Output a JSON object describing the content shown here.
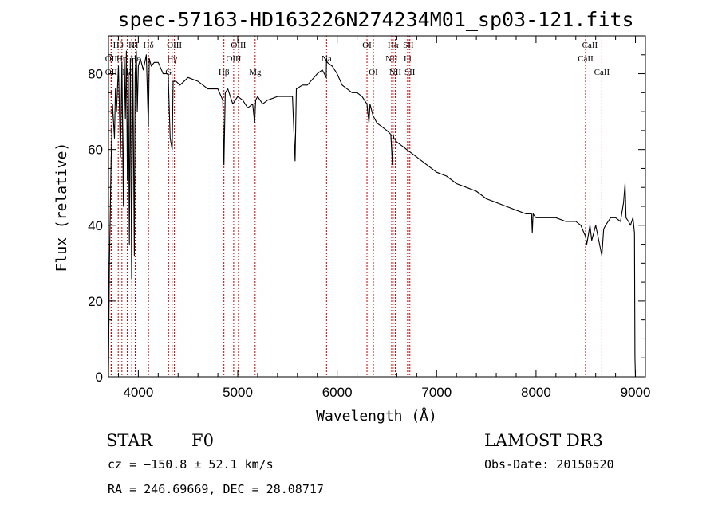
{
  "chart_data": {
    "type": "line",
    "title": "spec-57163-HD163226N274234M01_sp03-121.fits",
    "xlabel": "Wavelength (Å)",
    "ylabel": "Flux (relative)",
    "xlim": [
      3700,
      9100
    ],
    "ylim": [
      0,
      90
    ],
    "xticks": [
      4000,
      5000,
      6000,
      7000,
      8000,
      9000
    ],
    "yticks": [
      0,
      20,
      40,
      60,
      80
    ],
    "series": [
      {
        "name": "spectrum",
        "x": [
          3700,
          3710,
          3725,
          3740,
          3760,
          3770,
          3780,
          3800,
          3820,
          3835,
          3850,
          3860,
          3870,
          3880,
          3890,
          3900,
          3910,
          3920,
          3933,
          3945,
          3960,
          3968,
          3980,
          3990,
          4000,
          4020,
          4050,
          4080,
          4101,
          4110,
          4130,
          4160,
          4200,
          4250,
          4300,
          4320,
          4340,
          4350,
          4380,
          4420,
          4500,
          4600,
          4700,
          4800,
          4850,
          4861,
          4875,
          4900,
          4950,
          5000,
          5050,
          5100,
          5150,
          5170,
          5180,
          5200,
          5250,
          5300,
          5400,
          5500,
          5550,
          5577,
          5590,
          5650,
          5700,
          5800,
          5850,
          5890,
          5893,
          5900,
          5950,
          6000,
          6050,
          6100,
          6150,
          6200,
          6250,
          6300,
          6320,
          6330,
          6360,
          6400,
          6450,
          6500,
          6540,
          6556,
          6563,
          6570,
          6600,
          6650,
          6700,
          6750,
          6800,
          6900,
          7000,
          7100,
          7200,
          7300,
          7400,
          7500,
          7600,
          7700,
          7800,
          7900,
          7955,
          7962,
          7970,
          8000,
          8100,
          8200,
          8300,
          8400,
          8450,
          8498,
          8510,
          8542,
          8560,
          8600,
          8662,
          8680,
          8700,
          8750,
          8800,
          8850,
          8880,
          8895,
          8905,
          8930,
          8950,
          8975,
          8990,
          8995,
          9000
        ],
        "y": [
          0,
          30,
          55,
          72,
          63,
          76,
          70,
          82,
          58,
          83,
          45,
          84,
          68,
          86,
          52,
          80,
          35,
          84,
          26,
          84,
          32,
          80,
          86,
          70,
          82,
          84,
          81,
          85,
          66,
          84,
          82,
          83,
          83,
          80,
          80,
          63,
          60,
          78,
          78,
          77,
          79,
          78,
          76,
          76,
          73,
          56,
          75,
          76,
          72,
          74,
          73,
          71,
          72,
          67,
          73,
          74,
          72,
          73,
          74,
          74,
          74,
          57,
          76,
          77,
          77,
          80,
          81,
          79,
          84,
          83,
          82,
          80,
          77,
          76,
          75,
          75,
          74,
          72,
          67,
          72,
          69,
          67,
          66,
          65,
          64,
          56,
          64,
          63,
          62,
          61,
          60,
          59,
          58,
          56,
          54,
          53,
          51,
          50,
          49,
          47,
          46,
          45,
          44,
          43,
          43,
          38,
          43,
          42,
          42,
          42,
          41,
          41,
          40,
          37,
          35,
          40,
          36,
          40,
          32,
          39,
          40,
          42,
          42,
          41,
          46,
          51,
          42,
          41,
          40,
          42,
          38,
          5,
          0
        ]
      }
    ],
    "lines": [
      {
        "label": "OII",
        "x": 3727,
        "row": 2
      },
      {
        "label": "OII",
        "x": 3727,
        "row": 1
      },
      {
        "label": "Hθ",
        "x": 3798,
        "row": 0
      },
      {
        "label": "Hη",
        "x": 3835,
        "row": 1
      },
      {
        "label": "Hζ",
        "x": 3889,
        "row": 2
      },
      {
        "label": "K",
        "x": 3934,
        "row": 0
      },
      {
        "label": "H",
        "x": 3969,
        "row": 0
      },
      {
        "label": "Hε",
        "x": 3970,
        "row": 1
      },
      {
        "label": "Hδ",
        "x": 4102,
        "row": 0
      },
      {
        "label": "Hγ",
        "x": 4340,
        "row": 1
      },
      {
        "label": "OIII",
        "x": 4363,
        "row": 0
      },
      {
        "label": "G",
        "x": 4304,
        "row": 2
      },
      {
        "label": "Hβ",
        "x": 4861,
        "row": 2
      },
      {
        "label": "OIII",
        "x": 4959,
        "row": 1
      },
      {
        "label": "OIII",
        "x": 5007,
        "row": 0
      },
      {
        "label": "Mg",
        "x": 5175,
        "row": 2
      },
      {
        "label": "Na",
        "x": 5893,
        "row": 1
      },
      {
        "label": "OI",
        "x": 6300,
        "row": 0
      },
      {
        "label": "OI",
        "x": 6364,
        "row": 2
      },
      {
        "label": "NII",
        "x": 6548,
        "row": 1
      },
      {
        "label": "Hα",
        "x": 6563,
        "row": 0
      },
      {
        "label": "NII",
        "x": 6584,
        "row": 2
      },
      {
        "label": "SII",
        "x": 6716,
        "row": 0
      },
      {
        "label": "Li",
        "x": 6708,
        "row": 1
      },
      {
        "label": "SII",
        "x": 6731,
        "row": 2
      },
      {
        "label": "CaII",
        "x": 8498,
        "row": 1
      },
      {
        "label": "CaII",
        "x": 8542,
        "row": 0
      },
      {
        "label": "CaII",
        "x": 8662,
        "row": 2
      }
    ]
  },
  "info": {
    "class_label": "STAR",
    "subclass": "F0",
    "survey": "LAMOST DR3",
    "cz": "cz = −150.8 ± 52.1 km/s",
    "obs_date": "Obs-Date: 20150520",
    "coords": "RA = 246.69669, DEC =  28.08717"
  },
  "colors": {
    "line_marker": "#c00000",
    "spectrum": "#000000",
    "axis": "#000000"
  }
}
